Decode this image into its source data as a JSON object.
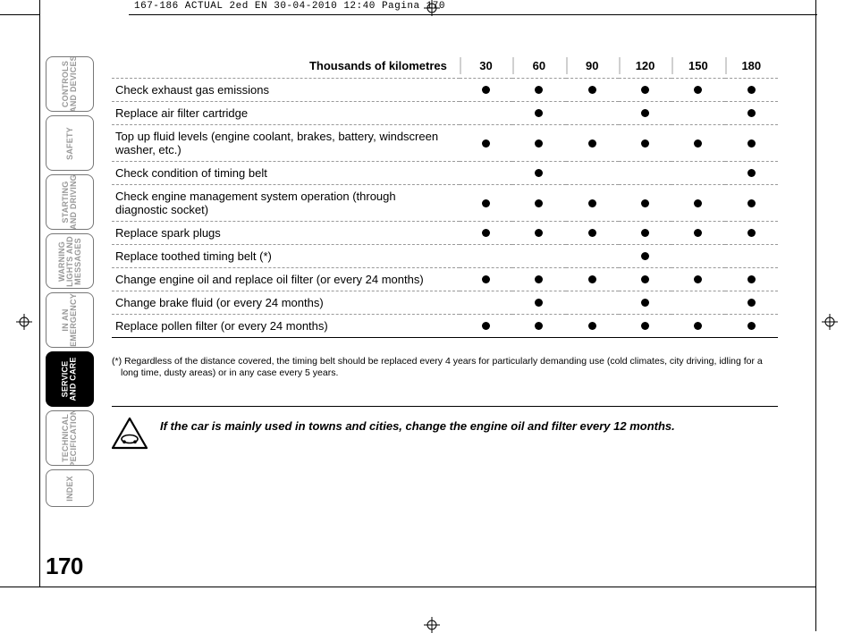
{
  "print_header": "167-186 ACTUAL 2ed EN  30-04-2010  12:40  Pagina 170",
  "page_number": "170",
  "side_tabs": [
    {
      "label": "CONTROLS\nAND DEVICES",
      "active": false
    },
    {
      "label": "SAFETY",
      "active": false
    },
    {
      "label": "STARTING\nAND DRIVING",
      "active": false
    },
    {
      "label": "WARNING\nLIGHTS AND\nMESSAGES",
      "active": false
    },
    {
      "label": "IN AN\nEMERGENCY",
      "active": false
    },
    {
      "label": "SERVICE\nAND CARE",
      "active": true
    },
    {
      "label": "TECHNICAL\nSPECIFICATIONS",
      "active": false
    },
    {
      "label": "INDEX",
      "active": false,
      "short": true
    }
  ],
  "maintenance_table": {
    "row_header": "Thousands of kilometres",
    "columns": [
      "30",
      "60",
      "90",
      "120",
      "150",
      "180"
    ],
    "rows": [
      {
        "desc": "Check exhaust gas emissions",
        "marks": [
          true,
          true,
          true,
          true,
          true,
          true
        ]
      },
      {
        "desc": "Replace air filter cartridge",
        "marks": [
          false,
          true,
          false,
          true,
          false,
          true
        ]
      },
      {
        "desc": "Top up fluid levels (engine coolant, brakes, battery, windscreen washer, etc.)",
        "marks": [
          true,
          true,
          true,
          true,
          true,
          true
        ]
      },
      {
        "desc": "Check condition of timing belt",
        "marks": [
          false,
          true,
          false,
          false,
          false,
          true
        ]
      },
      {
        "desc": "Check engine management system operation (through diagnostic socket)",
        "marks": [
          true,
          true,
          true,
          true,
          true,
          true
        ]
      },
      {
        "desc": "Replace spark plugs",
        "marks": [
          true,
          true,
          true,
          true,
          true,
          true
        ]
      },
      {
        "desc": "Replace toothed timing belt (*)",
        "marks": [
          false,
          false,
          false,
          true,
          false,
          false
        ]
      },
      {
        "desc": "Change engine oil and replace oil filter (or every 24 months)",
        "marks": [
          true,
          true,
          true,
          true,
          true,
          true
        ]
      },
      {
        "desc": "Change brake fluid (or every 24 months)",
        "marks": [
          false,
          true,
          false,
          true,
          false,
          true
        ]
      },
      {
        "desc": "Replace pollen filter (or every 24 months)",
        "marks": [
          true,
          true,
          true,
          true,
          true,
          true
        ]
      }
    ],
    "dot_color": "#000000",
    "border_style": "dashed",
    "border_color": "#999999",
    "font_size_desc": 13,
    "font_size_header": 13
  },
  "footnote": "(*) Regardless of the distance covered, the timing belt should be replaced every 4 years for particularly demanding use (cold climates, city driving, idling for a long time, dusty areas) or in any case every 5 years.",
  "note_text": "If the car is mainly used in towns and cities, change the engine oil and filter every 12 months.",
  "colors": {
    "background": "#ffffff",
    "text": "#000000",
    "tab_inactive_text": "#999999",
    "tab_active_bg": "#000000",
    "tab_active_text": "#ffffff",
    "col_separator": "#d0d0d0"
  },
  "typography": {
    "body_font": "Arial Narrow",
    "mono_font": "Courier New",
    "page_number_size": 26,
    "footnote_size": 10.5
  }
}
